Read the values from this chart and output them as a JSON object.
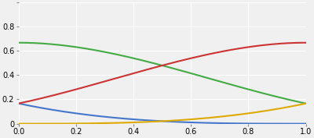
{
  "title": "",
  "xlim": [
    0,
    1
  ],
  "ylim": [
    0,
    1
  ],
  "x_ticks": [
    0,
    0.2,
    0.4,
    0.6,
    0.8,
    1.0
  ],
  "y_ticks": [
    0,
    0.2,
    0.4,
    0.6,
    0.8,
    1.0
  ],
  "y_tick_labels": [
    "0",
    "0.2",
    "0.4",
    "0.6",
    "0.8",
    ""
  ],
  "colors": {
    "b0": "#4477cc",
    "b1": "#44aa44",
    "b2": "#cc3333",
    "b3": "#ddaa00"
  },
  "background_color": "#f0f0f0",
  "grid_color": "#ffffff",
  "linewidth": 1.5
}
